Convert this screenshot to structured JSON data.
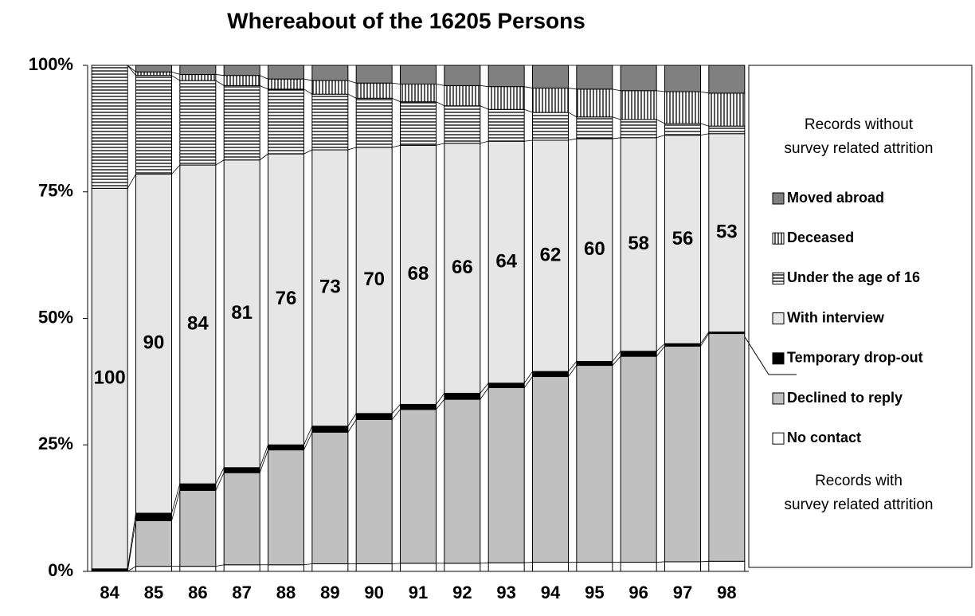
{
  "chart_data": {
    "type": "stacked_bar_100",
    "title": "Whereabout of the 16205 Persons",
    "categories": [
      "84",
      "85",
      "86",
      "87",
      "88",
      "89",
      "90",
      "91",
      "92",
      "93",
      "94",
      "95",
      "96",
      "97",
      "98"
    ],
    "series": [
      {
        "name": "No contact",
        "color": "#ffffff",
        "values": [
          0,
          1,
          1,
          1.3,
          1.3,
          1.5,
          1.5,
          1.6,
          1.6,
          1.7,
          1.8,
          1.8,
          1.8,
          1.9,
          2
        ]
      },
      {
        "name": "Declined to reply",
        "color": "#c0c0c0",
        "values": [
          0,
          9,
          15,
          18.2,
          22.7,
          26,
          28.5,
          30.4,
          32.4,
          34.6,
          36.7,
          38.9,
          40.7,
          42.6,
          45
        ]
      },
      {
        "name": "Temporary drop-out",
        "color": "#000000",
        "values": [
          0.5,
          1.5,
          1.3,
          1,
          1,
          1.2,
          1.2,
          1,
          1.2,
          0.9,
          1,
          0.8,
          1,
          0.5,
          0.3
        ]
      },
      {
        "name": "With interview",
        "color": "#e6e6e6",
        "values": [
          75.2,
          67,
          63,
          60.8,
          57.5,
          54.6,
          52.6,
          51.2,
          49.4,
          47.8,
          45.7,
          44,
          42.2,
          41.2,
          39.2
        ]
      },
      {
        "name": "Under the age of 16",
        "color": "#000000",
        "pattern": "horizontal",
        "values": [
          24.3,
          19.5,
          16.7,
          14.7,
          12.8,
          11,
          9.7,
          8.6,
          7.4,
          6.3,
          5.5,
          4.3,
          3.6,
          2.3,
          1.5
        ]
      },
      {
        "name": "Deceased",
        "color": "#000000",
        "pattern": "vertical",
        "values": [
          0,
          0.7,
          1.2,
          2,
          2,
          2.7,
          3,
          3.5,
          4,
          4.5,
          4.8,
          5.5,
          5.7,
          6.3,
          6.5
        ]
      },
      {
        "name": "Moved abroad",
        "color": "#808080",
        "values": [
          0,
          1.3,
          1.8,
          2,
          2.7,
          3,
          3.5,
          3.7,
          4,
          4.2,
          4.5,
          4.7,
          5,
          5.2,
          5.5
        ]
      }
    ],
    "bar_labels": [
      100,
      90,
      84,
      81,
      76,
      73,
      70,
      68,
      66,
      64,
      62,
      60,
      58,
      56,
      53
    ],
    "ylim": [
      0,
      100
    ],
    "yticks": [
      {
        "value": 0,
        "label": "0%"
      },
      {
        "value": 25,
        "label": "25%"
      },
      {
        "value": 50,
        "label": "50%"
      },
      {
        "value": 75,
        "label": "75%"
      },
      {
        "value": 100,
        "label": "100%"
      }
    ],
    "legend": "right",
    "legend_notes": {
      "top": [
        "Records without",
        "survey related attrition"
      ],
      "bottom": [
        "Records with",
        "survey related attrition"
      ]
    }
  }
}
